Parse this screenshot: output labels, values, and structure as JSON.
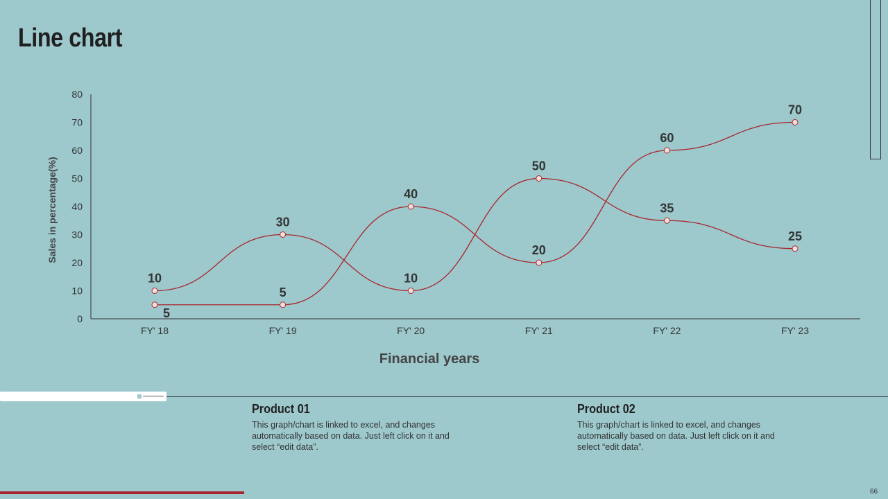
{
  "slide": {
    "title": "Line chart",
    "page_number": "66"
  },
  "products": [
    {
      "title": "Product 01",
      "description": "This graph/chart is linked to excel, and changes automatically based on data. Just left click on it and select “edit data”."
    },
    {
      "title": "Product 02",
      "description": "This graph/chart is linked to excel, and changes automatically based on data. Just left click on it and select “edit data”."
    }
  ],
  "colors": {
    "background": "#9dc8cc",
    "line": "#a8262b",
    "accent_bar": "#a8262b"
  },
  "chart_data": {
    "type": "line",
    "categories": [
      "FY' 18",
      "FY' 19",
      "FY' 20",
      "FY' 21",
      "FY' 22",
      "FY' 23"
    ],
    "series": [
      {
        "values": [
          10,
          30,
          10,
          50,
          35,
          25
        ]
      },
      {
        "values": [
          5,
          5,
          40,
          20,
          60,
          70
        ]
      }
    ],
    "xlabel": "Financial years",
    "ylabel": "Sales in percentage(%)",
    "ylim": [
      0,
      80
    ],
    "yticks": [
      0,
      10,
      20,
      30,
      40,
      50,
      60,
      70,
      80
    ],
    "smooth": true,
    "grid": false,
    "legend": "none",
    "data_labels": true
  }
}
